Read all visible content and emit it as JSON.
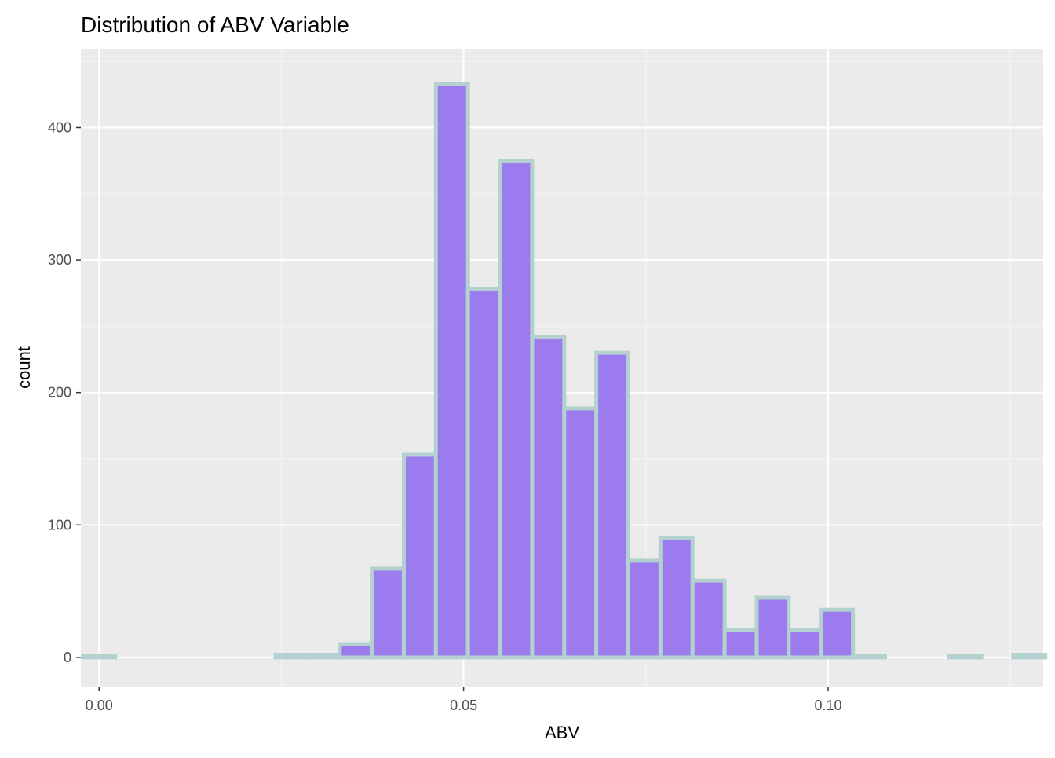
{
  "chart_data": {
    "type": "bar",
    "title": "Distribution of ABV Variable",
    "xlabel": "ABV",
    "ylabel": "count",
    "binwidth": 0.0044,
    "bin_centers": [
      0.0,
      0.0044,
      0.0088,
      0.0132,
      0.0176,
      0.022,
      0.0264,
      0.0308,
      0.0352,
      0.0396,
      0.044,
      0.0484,
      0.0528,
      0.0572,
      0.0616,
      0.066,
      0.0704,
      0.0748,
      0.0792,
      0.0836,
      0.088,
      0.0924,
      0.0968,
      0.1012,
      0.1056,
      0.11,
      0.1144,
      0.1188,
      0.1232,
      0.1276
    ],
    "values": [
      1,
      0,
      0,
      0,
      0,
      0,
      2,
      2,
      10,
      67,
      153,
      433,
      278,
      375,
      242,
      188,
      230,
      73,
      90,
      58,
      21,
      45,
      21,
      36,
      1,
      0,
      0,
      1,
      0,
      2
    ],
    "xlim": [
      -0.0025,
      0.1295
    ],
    "ylim": [
      -22,
      459
    ],
    "xticks": [
      0.0,
      0.05,
      0.1
    ],
    "xtick_labels": [
      "0.00",
      "0.05",
      "0.10"
    ],
    "yticks": [
      0,
      100,
      200,
      300,
      400
    ],
    "ytick_labels": [
      "0",
      "100",
      "200",
      "300",
      "400"
    ],
    "grid": true,
    "colors": {
      "panel_background": "#ebebeb",
      "grid_major": "#ffffff",
      "grid_minor": "#f5f5f5",
      "bar_fill": "#9b7bee",
      "bar_outline": "#b3d1cf",
      "tick_text": "#4d4d4d",
      "title_text": "#000000"
    }
  }
}
